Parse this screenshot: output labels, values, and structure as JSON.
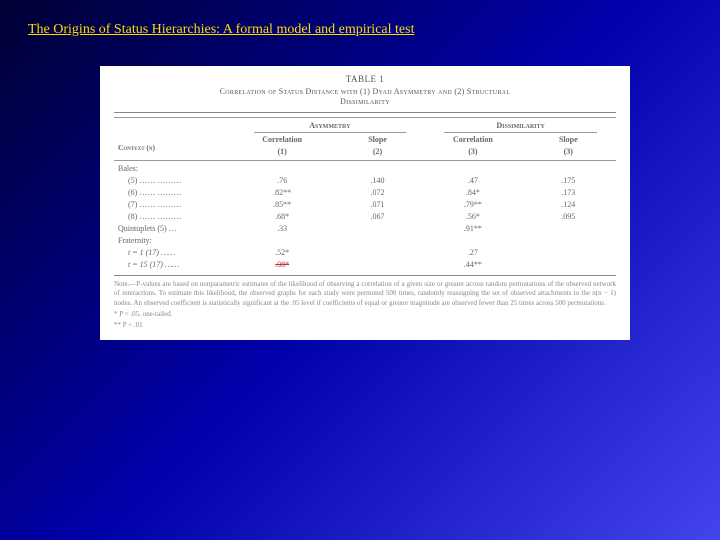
{
  "slide": {
    "title": "The Origins of Status Hierarchies: A formal model and empirical test"
  },
  "table": {
    "label": "TABLE 1",
    "caption_line1": "Correlation of Status Distance with (1) Dyad Asymmetry and (2) Structural",
    "caption_line2": "Dissimilarity",
    "group_headers": {
      "a": "Asymmetry",
      "b": "Dissimilarity"
    },
    "col_headers": {
      "context": "Context (n)",
      "c1": "Correlation",
      "c1n": "(1)",
      "c2": "Slope",
      "c2n": "(2)",
      "c3": "Correlation",
      "c3n": "(3)",
      "c4": "Slope",
      "c4n": "(3)"
    },
    "sections": {
      "bales": "Bales:",
      "quint": "Quintuplets (5) …",
      "frat": "Fraternity:"
    },
    "rows": [
      {
        "label": "(5)  …… ………",
        "c1": ".76",
        "c2": ".140",
        "c3": ".47",
        "c4": ".175"
      },
      {
        "label": "(6)  …… ………",
        "c1": ".82**",
        "c2": ".072",
        "c3": ".84*",
        "c4": ".173"
      },
      {
        "label": "(7)  …… ………",
        "c1": ".85**",
        "c2": ".071",
        "c3": ".79**",
        "c4": ".124"
      },
      {
        "label": "(8)  …… ………",
        "c1": ".68*",
        "c2": ".067",
        "c3": ".56*",
        "c4": ".095"
      }
    ],
    "quint_row": {
      "c1": ".33",
      "c2": "",
      "c3": ".91**",
      "c4": ""
    },
    "frat_rows": [
      {
        "label": "t  =  1 (17)  ……",
        "c1": ".52*",
        "c3": ".27"
      },
      {
        "label": "t  = 15 (17)  ……",
        "c1": ".08*",
        "c3": ".44**"
      }
    ],
    "note": "Note.—P-values are based on nonparametric estimates of the likelihood of observing a correlation of a given size or greater across random permutations of the observed network of interactions. To estimate this likelihood, the observed graphs for each study were permuted 500 times, randomly reassigning the set of observed attachments to the n(n − 1) nodes. An observed coefficient is statistically significant at the .05 level if coefficients of equal or greater magnitude are observed fewer than 25 times across 500 permutations.",
    "sig1": "* P < .05, one-tailed.",
    "sig2": "** P < .01"
  },
  "style": {
    "bg_gradient_from": "#000033",
    "bg_gradient_to": "#4444ee",
    "title_color": "#ffdd00",
    "table_bg": "#ffffff",
    "text_color": "#555555",
    "rule_color": "#888888",
    "strike_color": "#cc3333",
    "title_fontsize": 14,
    "body_fontsize": 8
  }
}
